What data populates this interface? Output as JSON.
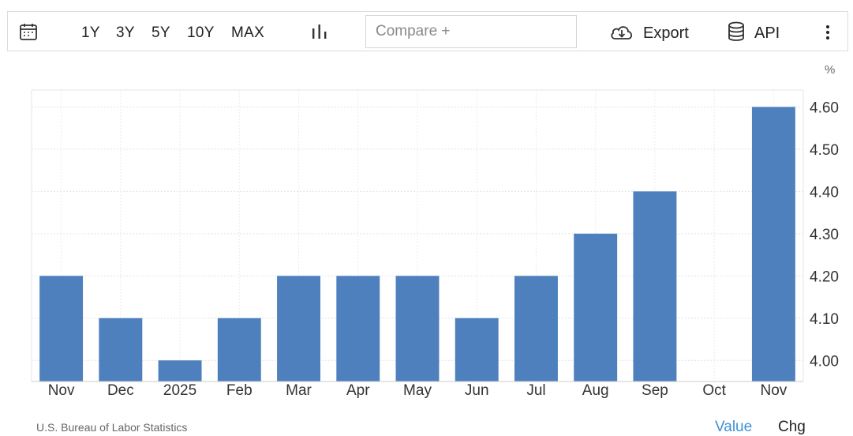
{
  "toolbar": {
    "icons": {
      "calendar": "calendar-icon",
      "chart_type": "bar-chart-icon",
      "export": "cloud-download-icon",
      "api": "database-icon",
      "more": "more-vertical-icon"
    },
    "ranges": [
      "1Y",
      "3Y",
      "5Y",
      "10Y",
      "MAX"
    ],
    "compare_placeholder": "Compare +",
    "export_label": "Export",
    "api_label": "API"
  },
  "footer": {
    "source": "U.S. Bureau of Labor Statistics",
    "value_tab": "Value",
    "chg_tab": "Chg"
  },
  "colors": {
    "bar": "#4e80bd",
    "accent": "#3d8fd6"
  },
  "chart_data": {
    "type": "bar",
    "unit": "%",
    "categories": [
      "Nov",
      "Dec",
      "2025",
      "Feb",
      "Mar",
      "Apr",
      "May",
      "Jun",
      "Jul",
      "Aug",
      "Sep",
      "Oct",
      "Nov"
    ],
    "values": [
      4.2,
      4.1,
      4.0,
      4.1,
      4.2,
      4.2,
      4.2,
      4.1,
      4.2,
      4.3,
      4.4,
      null,
      4.6
    ],
    "ylim": [
      3.95,
      4.64
    ],
    "yticks": [
      "4.00",
      "4.10",
      "4.20",
      "4.30",
      "4.40",
      "4.50",
      "4.60"
    ],
    "grid": true,
    "y_axis_side": "right"
  }
}
